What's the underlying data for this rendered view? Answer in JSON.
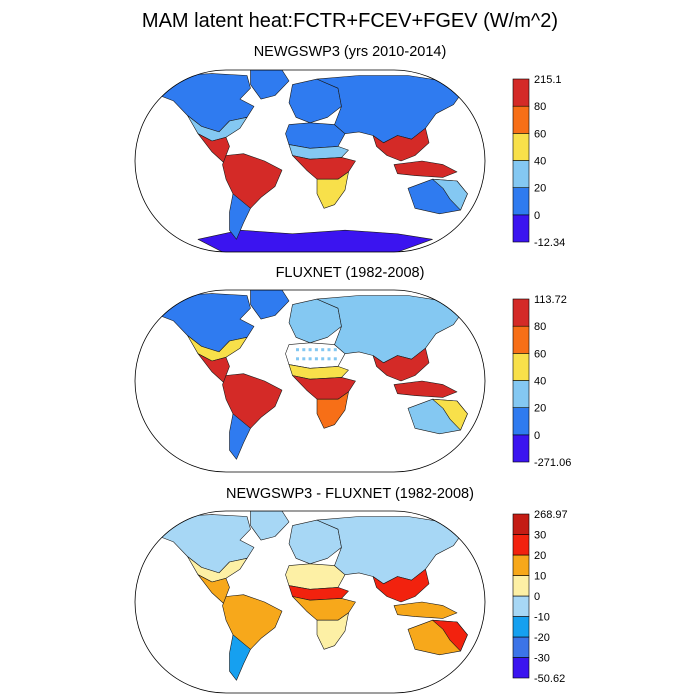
{
  "title": "MAM latent heat:FCTR+FCEV+FGEV (W/m^2)",
  "panels": [
    {
      "title": "NEWGSWP3 (yrs 2010-2014)",
      "colorbar": {
        "colors": [
          "#3b14f0",
          "#2f7bf0",
          "#84c8f2",
          "#f8e04a",
          "#f76f17",
          "#d42a27"
        ],
        "labels": [
          "-12.34",
          "0",
          "20",
          "40",
          "60",
          "80",
          "215.1"
        ]
      },
      "regions": {
        "north_america": "#2f7bf0",
        "north_america_south": "#84c8f2",
        "central_america": "#d42a27",
        "south_america": "#d42a27",
        "patagonia": "#2f7bf0",
        "greenland": "#2f7bf0",
        "europe": "#2f7bf0",
        "north_africa": "#2f7bf0",
        "sahel": "#84c8f2",
        "central_africa": "#d42a27",
        "southern_africa": "#f8e04a",
        "asia": "#2f7bf0",
        "southeast_asia": "#d42a27",
        "indonesia": "#d42a27",
        "australia": "#2f7bf0",
        "australia_edge": "#84c8f2",
        "antarctica": "#3b14f0"
      }
    },
    {
      "title": "FLUXNET (1982-2008)",
      "colorbar": {
        "colors": [
          "#3b14f0",
          "#2f7bf0",
          "#84c8f2",
          "#f8e04a",
          "#f76f17",
          "#d42a27"
        ],
        "labels": [
          "-271.06",
          "0",
          "20",
          "40",
          "60",
          "80",
          "113.72"
        ]
      },
      "regions": {
        "north_america": "#2f7bf0",
        "north_america_south": "#f8e04a",
        "central_america": "#d42a27",
        "south_america": "#d42a27",
        "patagonia": "#2f7bf0",
        "greenland": "#2f7bf0",
        "europe": "#84c8f2",
        "north_africa": "#ffffff",
        "sahel": "#f8e04a",
        "central_africa": "#d42a27",
        "southern_africa": "#f76f17",
        "asia": "#84c8f2",
        "southeast_asia": "#d42a27",
        "indonesia": "#d42a27",
        "australia": "#84c8f2",
        "australia_edge": "#f8e04a",
        "antarctica": "none"
      }
    },
    {
      "title": "NEWGSWP3 - FLUXNET (1982-2008)",
      "colorbar": {
        "colors": [
          "#3b14f0",
          "#3c74e8",
          "#16a0f0",
          "#a7d7f5",
          "#fdf0a5",
          "#f7a81b",
          "#f2220e",
          "#c41c14"
        ],
        "labels": [
          "-50.62",
          "-30",
          "-20",
          "-10",
          "0",
          "10",
          "20",
          "30",
          "268.97"
        ]
      },
      "regions": {
        "north_america": "#a7d7f5",
        "north_america_south": "#fdf0a5",
        "central_america": "#f7a81b",
        "south_america": "#f7a81b",
        "patagonia": "#16a0f0",
        "greenland": "#a7d7f5",
        "europe": "#a7d7f5",
        "north_africa": "#fdf0a5",
        "sahel": "#f2220e",
        "central_africa": "#f7a81b",
        "southern_africa": "#fdf0a5",
        "asia": "#a7d7f5",
        "southeast_asia": "#f2220e",
        "indonesia": "#f7a81b",
        "australia": "#f7a81b",
        "australia_edge": "#f2220e",
        "antarctica": "none"
      }
    }
  ]
}
